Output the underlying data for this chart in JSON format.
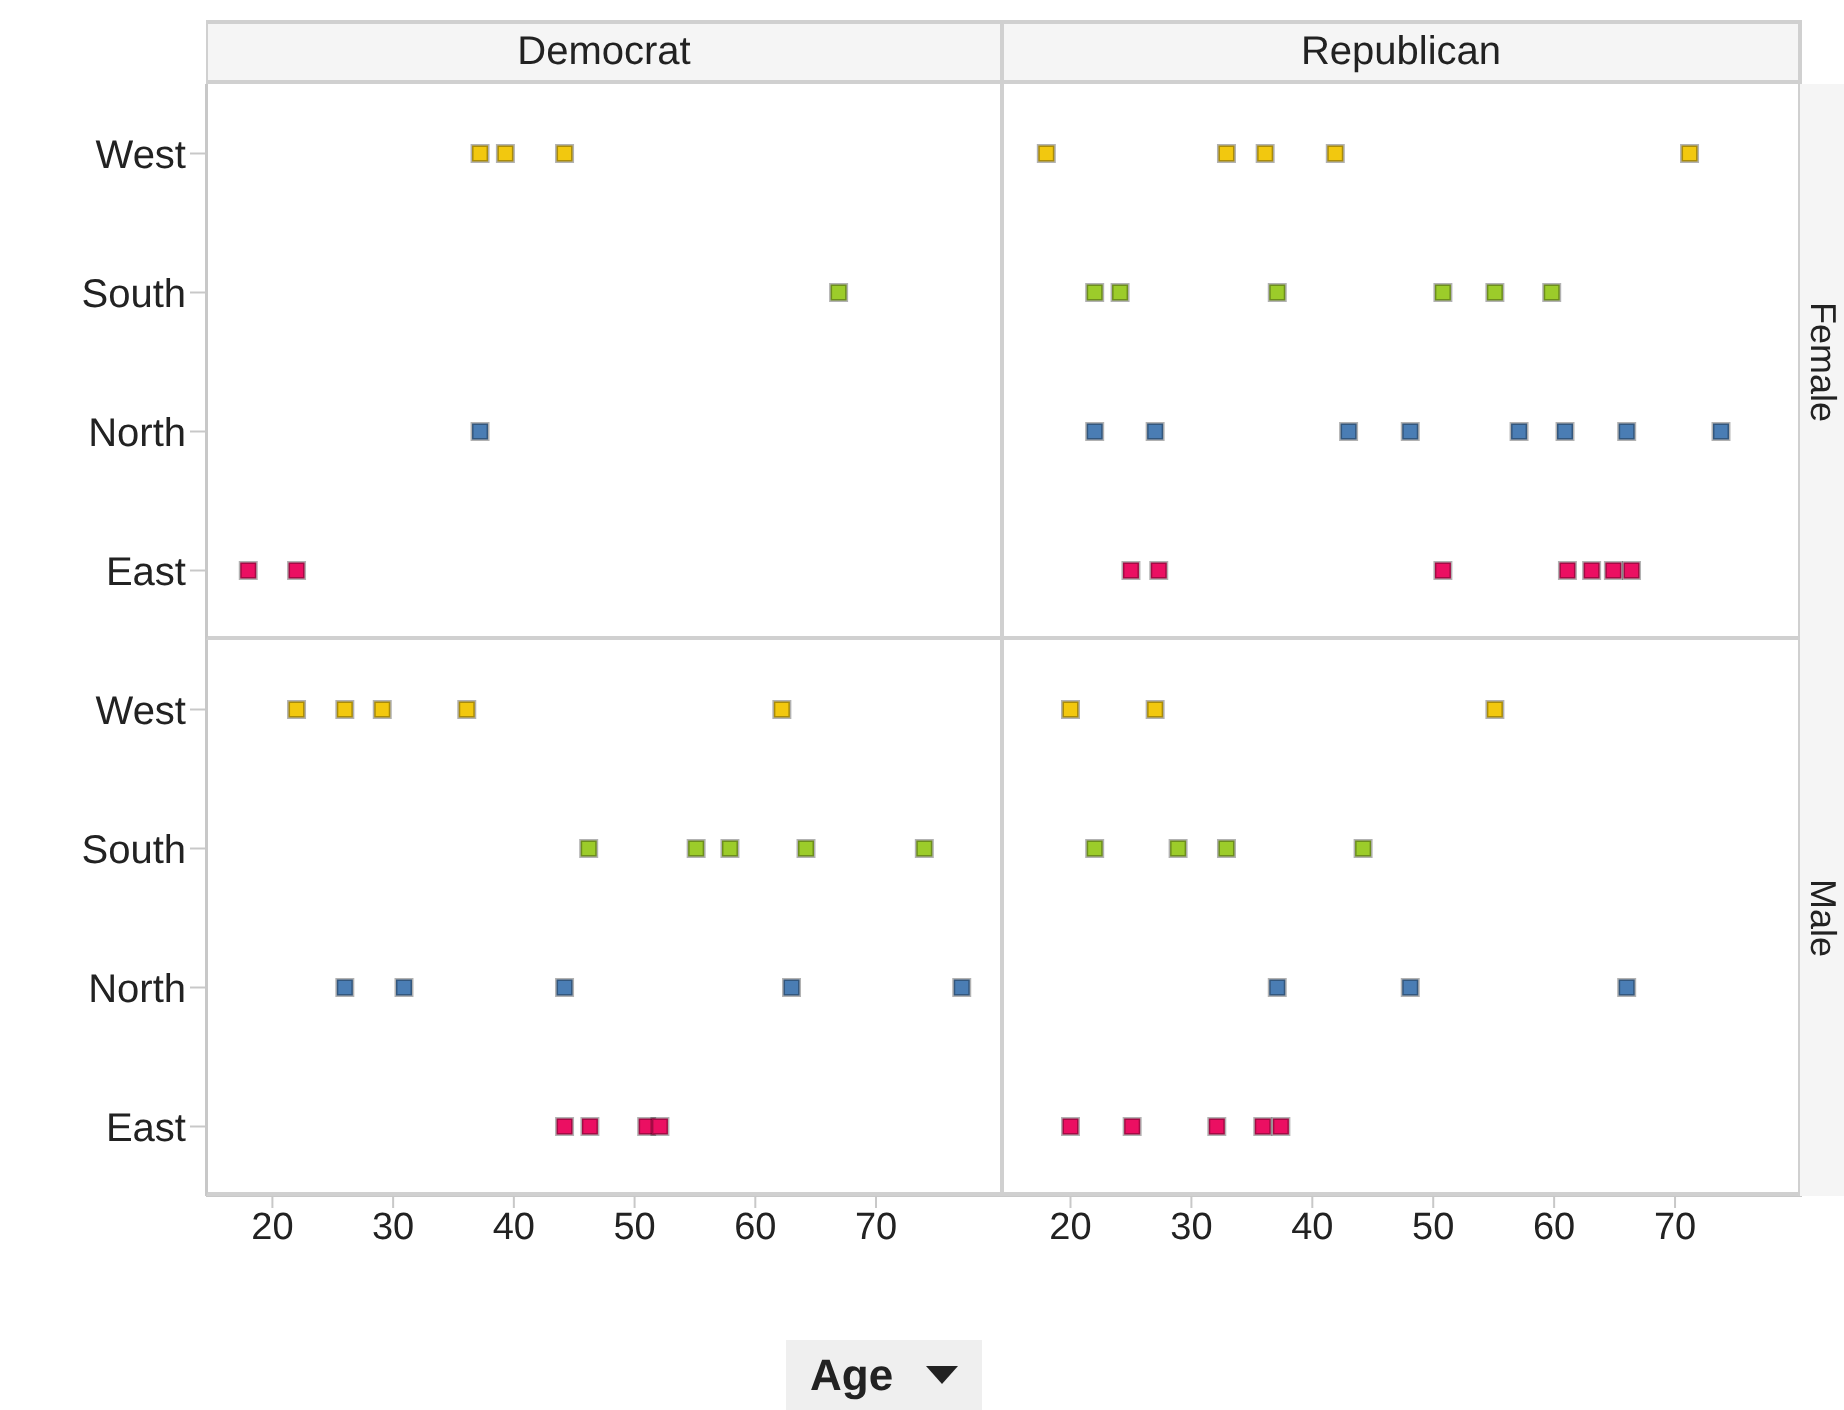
{
  "chart_data": [
    {
      "type": "scatter",
      "title": "Democrat",
      "orientation": "horizontal",
      "marker": "square",
      "tick_labels": "y",
      "categories": [
        "West",
        "South",
        "North",
        "East"
      ],
      "xlim": [
        14.5,
        80.6
      ],
      "xticks": [
        20,
        30,
        40,
        50,
        60,
        70
      ],
      "series": [
        {
          "color": "#f2c80f",
          "x": [
            "West",
            "West",
            "West"
          ],
          "values": [
            37.2,
            39.3,
            44.2
          ]
        },
        {
          "color": "#9ccc2a",
          "x": [
            "South"
          ],
          "values": [
            66.9
          ]
        },
        {
          "color": "#4a7db4",
          "x": [
            "North"
          ],
          "values": [
            37.2
          ]
        },
        {
          "color": "#eb0f62",
          "x": [
            "East",
            "East"
          ],
          "values": [
            18.0,
            22.0
          ]
        }
      ]
    },
    {
      "type": "scatter",
      "title": "Republican",
      "y2label": "Female",
      "orientation": "horizontal",
      "marker": "square",
      "tick_labels": false,
      "categories": [
        "West",
        "South",
        "North",
        "East"
      ],
      "xlim": [
        14.5,
        80.5
      ],
      "xticks": [
        20,
        30,
        40,
        50,
        60,
        70
      ],
      "series": [
        {
          "color": "#f2c80f",
          "x": [
            "West",
            "West",
            "West",
            "West",
            "West"
          ],
          "values": [
            18.0,
            32.9,
            36.1,
            41.9,
            71.2
          ]
        },
        {
          "color": "#9ccc2a",
          "x": [
            "South",
            "South",
            "South",
            "South",
            "South",
            "South"
          ],
          "values": [
            22.0,
            24.1,
            37.1,
            50.8,
            55.1,
            59.8
          ]
        },
        {
          "color": "#4a7db4",
          "x": [
            "North",
            "North",
            "North",
            "North",
            "North",
            "North",
            "North",
            "North"
          ],
          "values": [
            22.0,
            27.0,
            43.0,
            48.1,
            57.1,
            60.9,
            66.0,
            73.8
          ]
        },
        {
          "color": "#eb0f62",
          "x": [
            "East",
            "East",
            "East",
            "East",
            "East",
            "East",
            "East"
          ],
          "values": [
            25.0,
            27.3,
            50.8,
            61.1,
            63.1,
            64.9,
            66.4
          ]
        }
      ]
    },
    {
      "type": "scatter",
      "xlabel": "Age",
      "orientation": "horizontal",
      "marker": "square",
      "categories": [
        "West",
        "South",
        "North",
        "East"
      ],
      "xlim": [
        14.5,
        80.6
      ],
      "xticks": [
        20,
        30,
        40,
        50,
        60,
        70
      ],
      "series": [
        {
          "color": "#f2c80f",
          "x": [
            "West",
            "West",
            "West",
            "West",
            "West"
          ],
          "values": [
            22.0,
            26.0,
            29.1,
            36.1,
            62.2
          ]
        },
        {
          "color": "#9ccc2a",
          "x": [
            "South",
            "South",
            "South",
            "South",
            "South"
          ],
          "values": [
            46.2,
            55.1,
            57.9,
            64.2,
            74.0
          ]
        },
        {
          "color": "#4a7db4",
          "x": [
            "North",
            "North",
            "North",
            "North",
            "North"
          ],
          "values": [
            26.0,
            30.9,
            44.2,
            63.0,
            77.1
          ]
        },
        {
          "color": "#eb0f62",
          "x": [
            "East",
            "East",
            "East",
            "East"
          ],
          "values": [
            44.2,
            46.3,
            51.0,
            52.1
          ]
        }
      ]
    },
    {
      "type": "scatter",
      "y2label": "Male",
      "orientation": "horizontal",
      "marker": "square",
      "tick_labels": "x",
      "categories": [
        "West",
        "South",
        "North",
        "East"
      ],
      "xlim": [
        14.5,
        80.5
      ],
      "xticks": [
        20,
        30,
        40,
        50,
        60,
        70
      ],
      "series": [
        {
          "color": "#f2c80f",
          "x": [
            "West",
            "West",
            "West"
          ],
          "values": [
            20.0,
            27.0,
            55.1
          ]
        },
        {
          "color": "#9ccc2a",
          "x": [
            "South",
            "South",
            "South",
            "South"
          ],
          "values": [
            22.0,
            28.9,
            32.9,
            44.2
          ]
        },
        {
          "color": "#4a7db4",
          "x": [
            "North",
            "North",
            "North"
          ],
          "values": [
            37.1,
            48.1,
            66.0
          ]
        },
        {
          "color": "#eb0f62",
          "x": [
            "East",
            "East",
            "East",
            "East",
            "East"
          ],
          "values": [
            20.0,
            25.1,
            32.1,
            35.9,
            37.4
          ]
        }
      ]
    }
  ]
}
